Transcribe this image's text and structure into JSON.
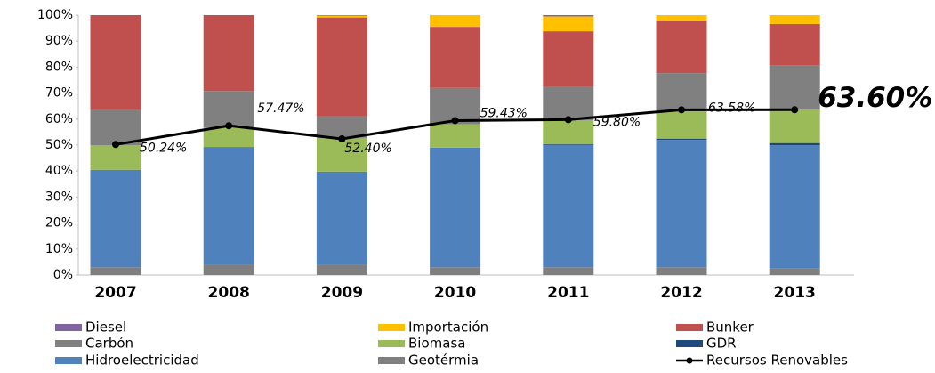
{
  "chart_data": {
    "type": "stacked-bar-line",
    "categories": [
      "2007",
      "2008",
      "2009",
      "2010",
      "2011",
      "2012",
      "2013"
    ],
    "series": [
      {
        "name": "Geotérmia",
        "color": "#7f7f7f",
        "values": [
          3,
          3.8,
          3.8,
          3,
          3,
          3,
          2.5
        ]
      },
      {
        "name": "Hidroelectricidad",
        "color": "#4f81bd",
        "values": [
          37.5,
          45.5,
          36,
          46,
          47,
          49,
          47.5
        ]
      },
      {
        "name": "GDR",
        "color": "#1f497d",
        "values": [
          0,
          0,
          0,
          0,
          0.3,
          0.5,
          0.8
        ]
      },
      {
        "name": "Biomasa",
        "color": "#9bbb59",
        "values": [
          9.5,
          7.5,
          13,
          9,
          9.3,
          10.5,
          12.9
        ]
      },
      {
        "name": "Carbón",
        "color": "#808080",
        "values": [
          13.5,
          14,
          8.3,
          14,
          13,
          14.7,
          17.1
        ]
      },
      {
        "name": "Bunker",
        "color": "#c0504d",
        "values": [
          36.5,
          29.2,
          38,
          23.5,
          21.2,
          19.9,
          15.8
        ]
      },
      {
        "name": "Importación",
        "color": "#ffc000",
        "values": [
          0,
          0,
          0.7,
          4.5,
          5.7,
          2.4,
          3.4
        ]
      },
      {
        "name": "Diesel",
        "color": "#8064a2",
        "values": [
          0,
          0,
          0.2,
          0,
          0.5,
          0,
          0
        ]
      }
    ],
    "line": {
      "name": "Recursos Renovables",
      "color": "#000000",
      "values": [
        50.24,
        57.47,
        52.4,
        59.43,
        59.8,
        63.58,
        63.6
      ],
      "value_labels": [
        "50.24%",
        "57.47%",
        "52.40%",
        "59.43%",
        "59.80%",
        "63.58%",
        "63.60%"
      ]
    },
    "ylim": [
      0,
      100
    ],
    "yticks": [
      {
        "value": 0,
        "label": "0%"
      },
      {
        "value": 10,
        "label": "10%"
      },
      {
        "value": 20,
        "label": "20%"
      },
      {
        "value": 30,
        "label": "30%"
      },
      {
        "value": 40,
        "label": "40%"
      },
      {
        "value": 50,
        "label": "50%"
      },
      {
        "value": 60,
        "label": "60%"
      },
      {
        "value": 70,
        "label": "70%"
      },
      {
        "value": 80,
        "label": "80%"
      },
      {
        "value": 90,
        "label": "90%"
      },
      {
        "value": 100,
        "label": "100%"
      }
    ],
    "grid": false
  }
}
